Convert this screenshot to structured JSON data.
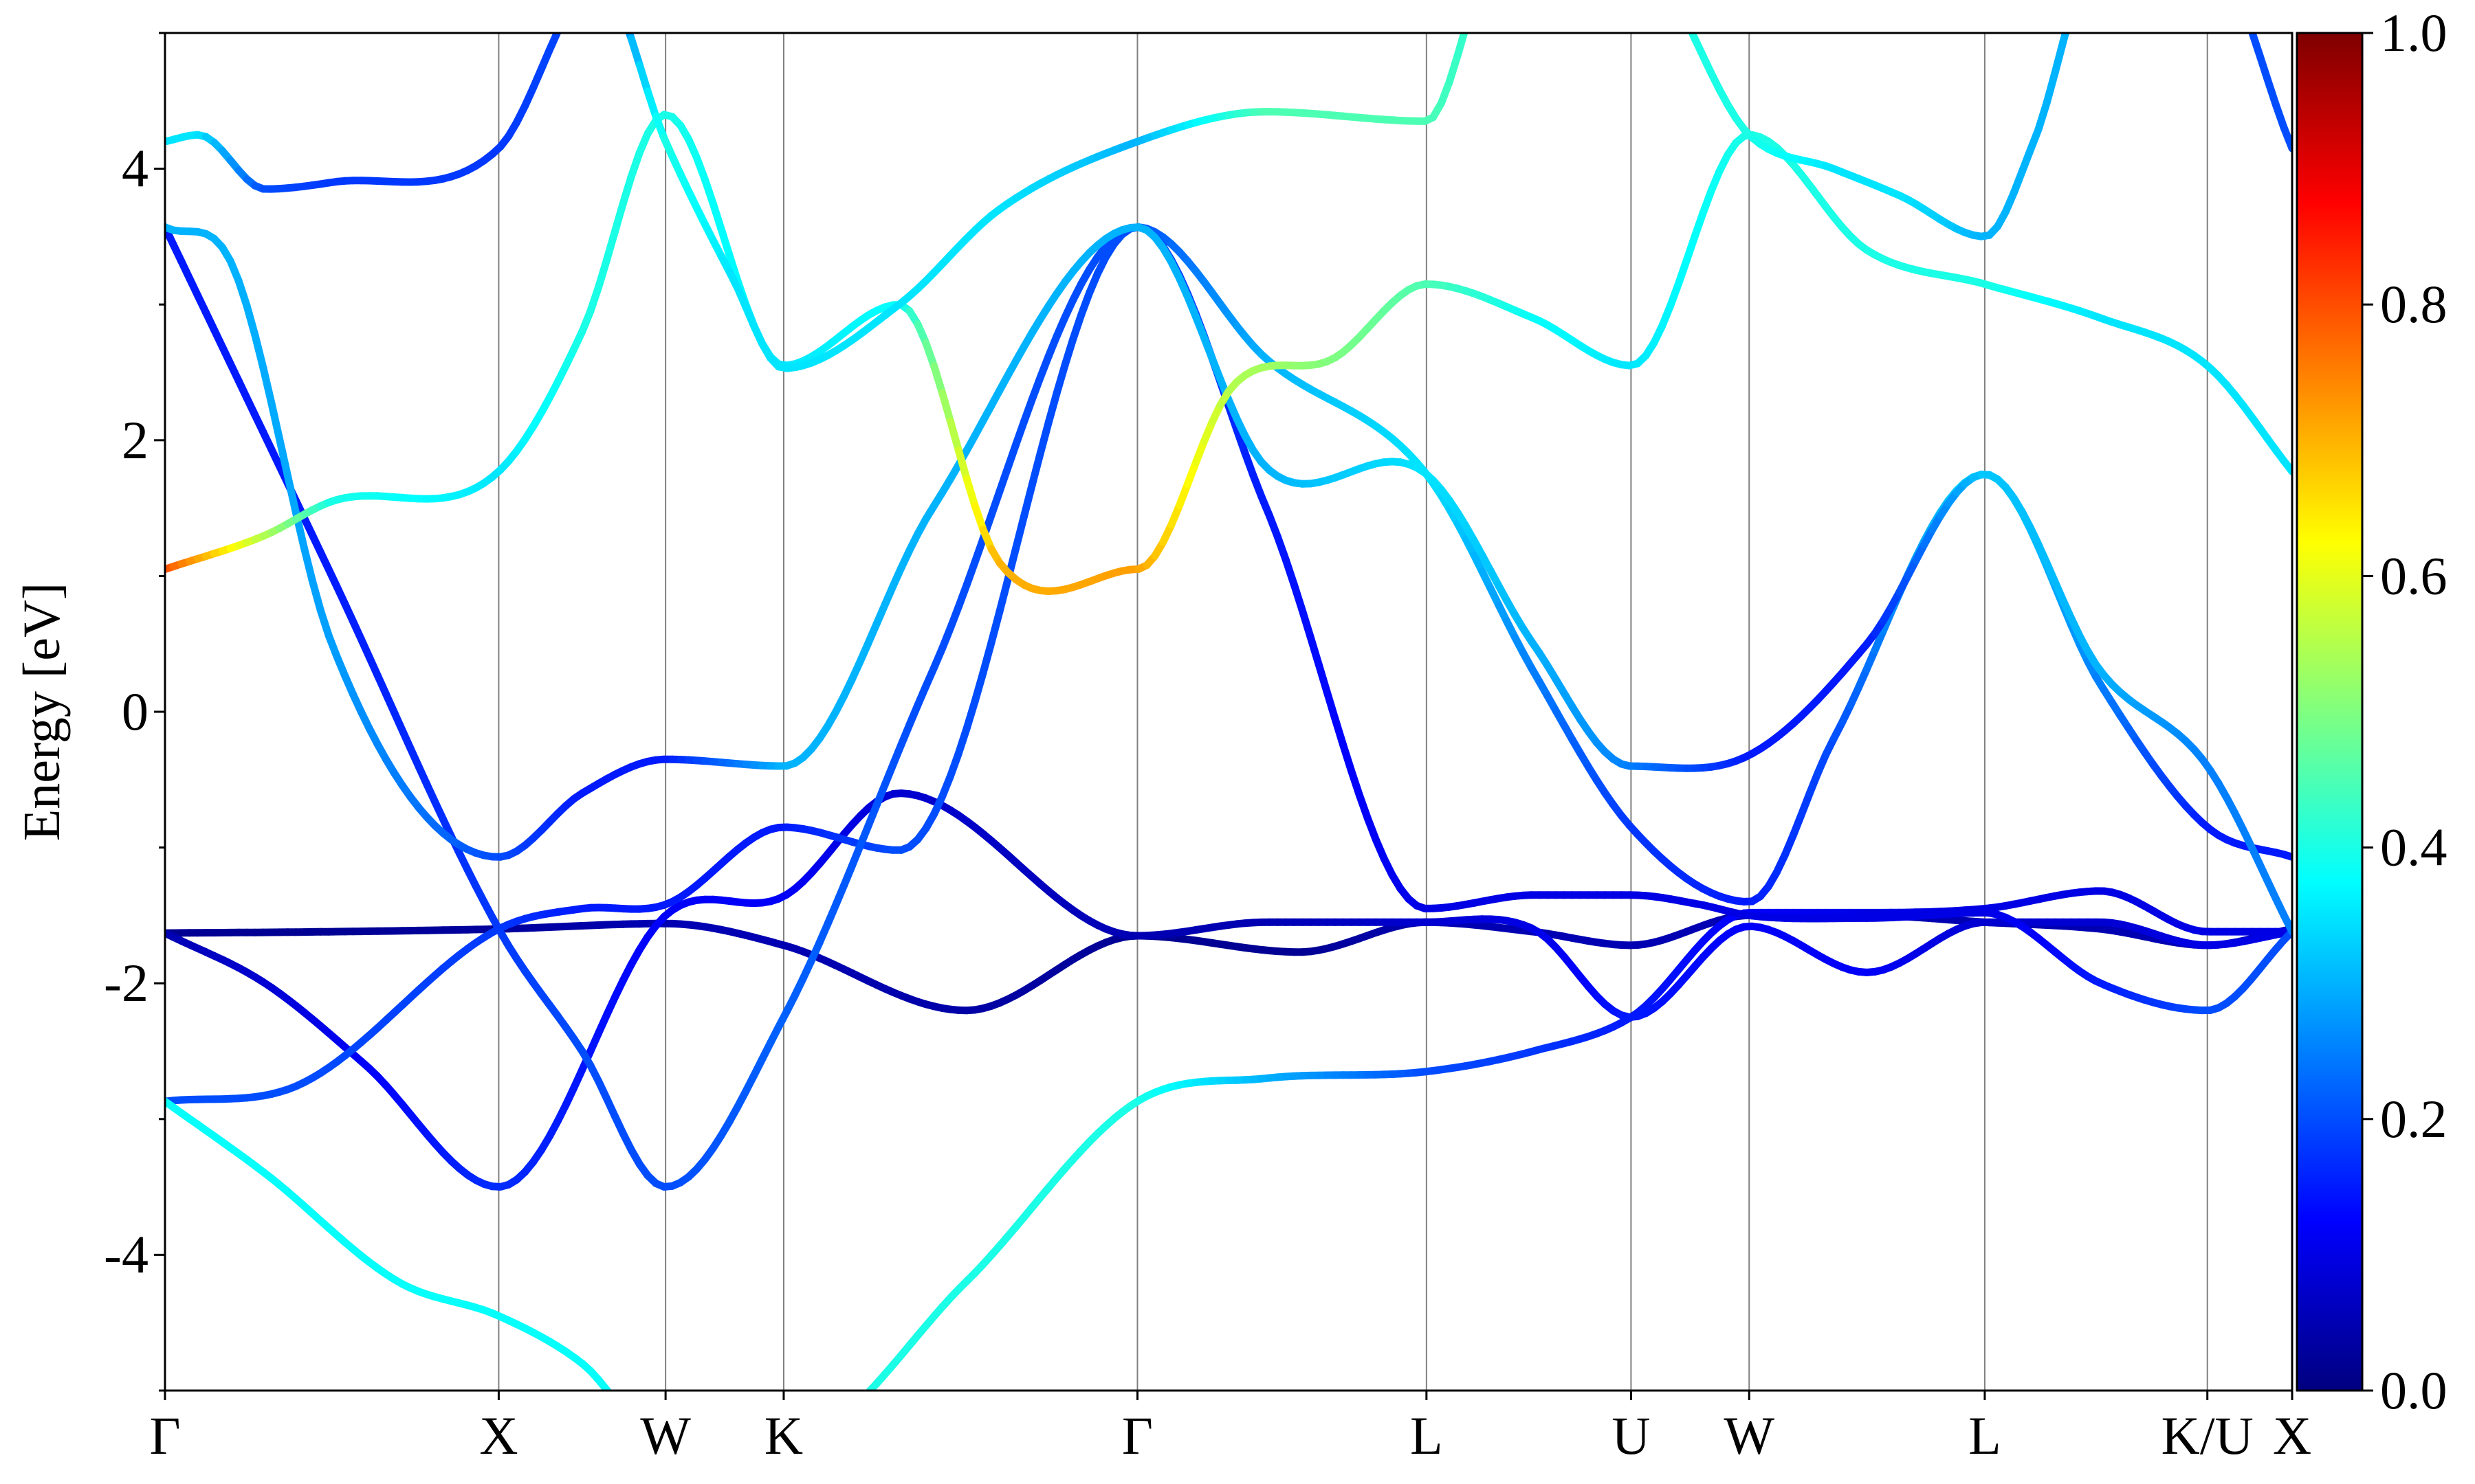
{
  "chart_data": {
    "type": "line",
    "title": "",
    "xlabel": "",
    "ylabel": "Energy [eV]",
    "ylim": [
      -5,
      5
    ],
    "y_ticks": [
      -4,
      -2,
      0,
      2,
      4
    ],
    "y_tick_labels": [
      "-4",
      "-2",
      "0",
      "2",
      "4"
    ],
    "k_points": [
      "Γ",
      "X",
      "W",
      "K",
      "Γ",
      "L",
      "U",
      "W",
      "L",
      "K/U",
      "X"
    ],
    "k_positions": [
      0,
      1.0,
      1.5,
      1.854,
      2.914,
      3.78,
      4.393,
      4.747,
      5.453,
      6.12,
      6.374
    ],
    "grid": "vertical lines at high-symmetry points",
    "legend": "none",
    "colorbar": {
      "colormap": "jet",
      "range": [
        0,
        1
      ],
      "ticks": [
        0,
        0.2,
        0.4,
        0.6,
        0.8,
        1.0
      ],
      "tick_labels": [
        "0.0",
        "0.2",
        "0.4",
        "0.6",
        "0.8",
        "1.0"
      ]
    },
    "series": [
      {
        "x": [
          0,
          0.5,
          1.0,
          1.5,
          1.854,
          2.4,
          2.914,
          3.4,
          3.78,
          4.1,
          4.393,
          4.747,
          5.1,
          5.453,
          5.8,
          6.12,
          6.374
        ],
        "y": [
          -1.63,
          -1.62,
          -1.6,
          -1.56,
          -1.72,
          -2.2,
          -1.65,
          -1.77,
          -1.55,
          -1.62,
          -1.72,
          -1.5,
          -1.5,
          -1.55,
          -1.6,
          -1.72,
          -1.6
        ],
        "c": [
          0.02,
          0.02,
          0.03,
          0.05,
          0.05,
          0.04,
          0.02,
          0.02,
          0.05,
          0.05,
          0.05,
          0.05,
          0.05,
          0.05,
          0.05,
          0.05,
          0.05
        ]
      },
      {
        "x": [
          0,
          0.3,
          0.6,
          1.0,
          1.5,
          1.854,
          2.2,
          2.914,
          3.3,
          3.78,
          4.1,
          4.393,
          4.747,
          5.1,
          5.453,
          5.8,
          6.12,
          6.374
        ],
        "y": [
          -1.63,
          -2.0,
          -2.6,
          -3.5,
          -1.5,
          -1.36,
          -0.6,
          -1.65,
          -1.55,
          -1.55,
          -1.6,
          -2.25,
          -1.58,
          -1.92,
          -1.55,
          -1.55,
          -1.72,
          -1.62
        ],
        "c": [
          0.05,
          0.08,
          0.12,
          0.17,
          0.12,
          0.12,
          0.08,
          0.05,
          0.05,
          0.08,
          0.1,
          0.15,
          0.12,
          0.12,
          0.08,
          0.08,
          0.1,
          0.1
        ]
      },
      {
        "x": [
          0,
          0.4,
          1.0,
          1.25,
          1.5,
          1.854,
          2.2,
          2.914,
          3.3,
          3.78,
          4.1,
          4.393,
          4.747,
          5.0,
          5.453,
          5.8,
          6.12,
          6.374
        ],
        "y": [
          -2.87,
          -2.75,
          -1.6,
          -1.45,
          -1.42,
          -0.85,
          -1.02,
          3.57,
          2.6,
          1.75,
          0.3,
          -0.85,
          -1.4,
          -0.2,
          1.75,
          0.2,
          -0.85,
          -1.07
        ],
        "c": [
          0.2,
          0.2,
          0.18,
          0.15,
          0.15,
          0.15,
          0.2,
          0.2,
          0.3,
          0.35,
          0.25,
          0.18,
          0.15,
          0.2,
          0.35,
          0.25,
          0.15,
          0.15
        ]
      },
      {
        "x": [
          0,
          0.3,
          0.7,
          1.0,
          1.25,
          1.5,
          1.854,
          2.4,
          2.914,
          3.3,
          3.78,
          4.1,
          4.393,
          4.747,
          5.1,
          5.453,
          5.8,
          6.12,
          6.374
        ],
        "y": [
          -2.87,
          -3.4,
          -4.2,
          -4.45,
          -4.8,
          -5.4,
          -5.4,
          -4.2,
          -2.87,
          -2.7,
          -2.65,
          -2.5,
          -2.25,
          -1.48,
          -1.48,
          -1.45,
          -1.32,
          -1.62,
          -1.62
        ],
        "c": [
          0.38,
          0.38,
          0.38,
          0.38,
          0.38,
          0.38,
          0.4,
          0.4,
          0.4,
          0.3,
          0.2,
          0.18,
          0.15,
          0.12,
          0.1,
          0.1,
          0.1,
          0.1,
          0.1
        ]
      },
      {
        "x": [
          0,
          0.5,
          1.0,
          1.25,
          1.5,
          1.854,
          2.3,
          2.914,
          3.3,
          3.78,
          4.1,
          4.393,
          4.6,
          4.747,
          5.1,
          5.453,
          5.8,
          6.12,
          6.374
        ],
        "y": [
          3.57,
          1.0,
          -1.6,
          -2.5,
          -3.5,
          -2.25,
          0.3,
          3.57,
          1.5,
          -1.45,
          -1.35,
          -1.35,
          -1.42,
          -1.5,
          -1.52,
          -1.48,
          -2.0,
          -2.2,
          -1.62
        ],
        "c": [
          0.15,
          0.15,
          0.18,
          0.2,
          0.2,
          0.22,
          0.2,
          0.2,
          0.15,
          0.1,
          0.1,
          0.1,
          0.1,
          0.1,
          0.1,
          0.1,
          0.15,
          0.2,
          0.2
        ]
      },
      {
        "x": [
          0,
          0.2,
          0.5,
          1.0,
          1.25,
          1.5,
          1.854,
          2.3,
          2.914,
          3.3,
          3.78,
          4.1,
          4.393,
          4.747,
          5.1,
          5.453,
          5.8,
          6.12,
          6.374
        ],
        "y": [
          3.57,
          3.3,
          0.5,
          -1.07,
          -0.6,
          -0.35,
          -0.4,
          1.5,
          3.57,
          1.8,
          1.75,
          0.5,
          -0.4,
          -0.32,
          0.5,
          1.75,
          0.3,
          -0.4,
          -1.62
        ],
        "c": [
          0.3,
          0.3,
          0.28,
          0.2,
          0.15,
          0.15,
          0.3,
          0.3,
          0.3,
          0.3,
          0.35,
          0.3,
          0.25,
          0.15,
          0.15,
          0.32,
          0.3,
          0.25,
          0.25
        ]
      },
      {
        "x": [
          0,
          0.3,
          0.5,
          1.0,
          1.25,
          1.5,
          1.854,
          2.2,
          2.5,
          2.914,
          3.2,
          3.5,
          3.78,
          4.1,
          4.393,
          4.747,
          5.1,
          5.453,
          5.8,
          6.12,
          6.374
        ],
        "y": [
          1.05,
          1.3,
          1.55,
          1.77,
          2.8,
          4.4,
          2.55,
          3.0,
          1.1,
          1.05,
          2.4,
          2.6,
          3.15,
          2.9,
          2.55,
          4.25,
          3.4,
          3.15,
          2.9,
          2.55,
          1.77
        ],
        "c": [
          0.8,
          0.55,
          0.4,
          0.35,
          0.4,
          0.4,
          0.35,
          0.38,
          0.7,
          0.72,
          0.55,
          0.5,
          0.45,
          0.38,
          0.35,
          0.4,
          0.4,
          0.4,
          0.35,
          0.35,
          0.35
        ]
      },
      {
        "x": [
          0,
          0.1,
          0.3,
          0.5,
          1.0,
          1.3,
          1.5,
          1.7,
          1.854,
          2.2,
          2.5,
          2.914,
          3.3,
          3.78,
          4.0,
          4.2,
          4.393,
          4.747,
          5.0,
          5.2,
          5.453,
          5.6,
          5.8,
          6.0,
          6.12,
          6.374
        ],
        "y": [
          4.2,
          4.25,
          3.85,
          3.9,
          4.15,
          5.4,
          4.2,
          3.2,
          2.53,
          3.0,
          3.7,
          4.2,
          4.42,
          4.35,
          5.6,
          5.6,
          5.6,
          4.25,
          4.0,
          3.8,
          3.5,
          4.2,
          5.6,
          5.6,
          5.6,
          4.15
        ],
        "c": [
          0.35,
          0.35,
          0.2,
          0.18,
          0.18,
          0.2,
          0.4,
          0.35,
          0.35,
          0.35,
          0.35,
          0.3,
          0.45,
          0.45,
          0.4,
          0.4,
          0.4,
          0.4,
          0.35,
          0.35,
          0.3,
          0.3,
          0.3,
          0.2,
          0.2,
          0.2
        ]
      }
    ]
  }
}
